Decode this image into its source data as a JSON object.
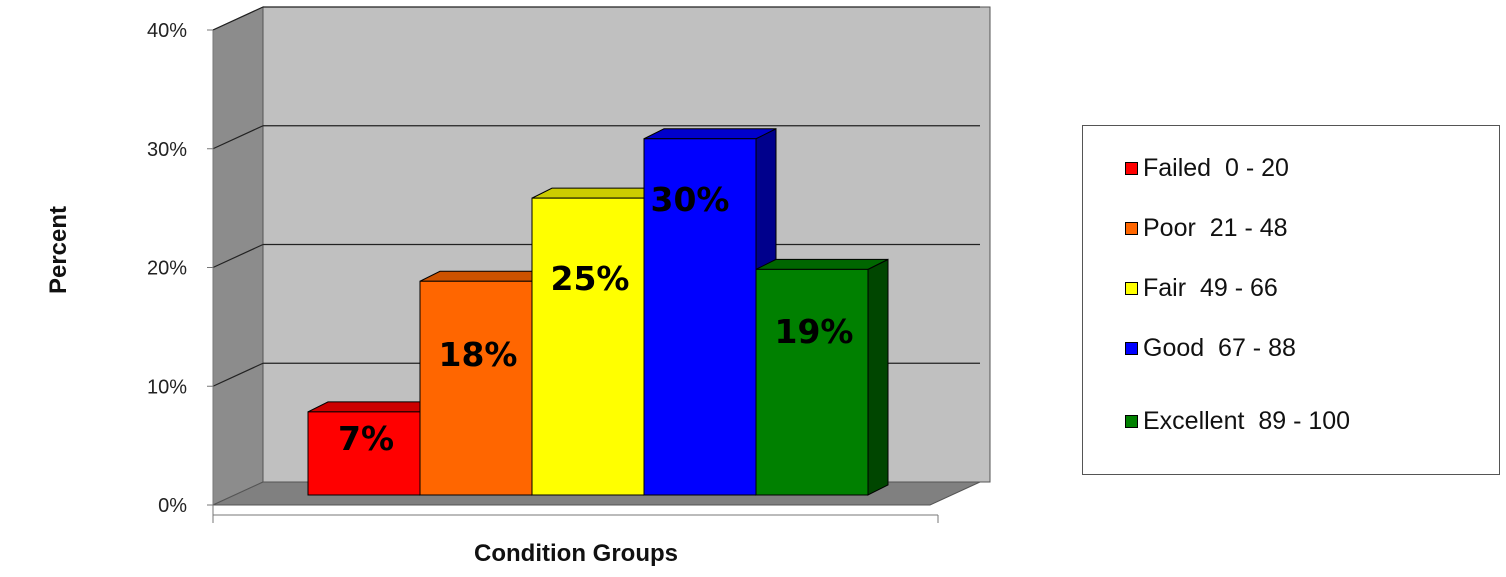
{
  "chart_data": {
    "type": "bar",
    "categories": [
      "Failed  0 - 20",
      "Poor  21 - 48",
      "Fair  49 - 66",
      "Good  67 - 88",
      "Excellent  89 - 100"
    ],
    "values": [
      7,
      18,
      25,
      30,
      19
    ],
    "data_labels": [
      "7%",
      "18%",
      "25%",
      "30%",
      "19%"
    ],
    "colors": [
      "#ff0000",
      "#ff6600",
      "#ffff00",
      "#0000ff",
      "#008000"
    ],
    "xlabel": "Condition Groups",
    "ylabel": "Percent",
    "ylim": [
      0,
      40
    ],
    "yticks": [
      "0%",
      "10%",
      "20%",
      "30%",
      "40%"
    ],
    "grid": true,
    "legend_position": "right",
    "three_d": true
  }
}
